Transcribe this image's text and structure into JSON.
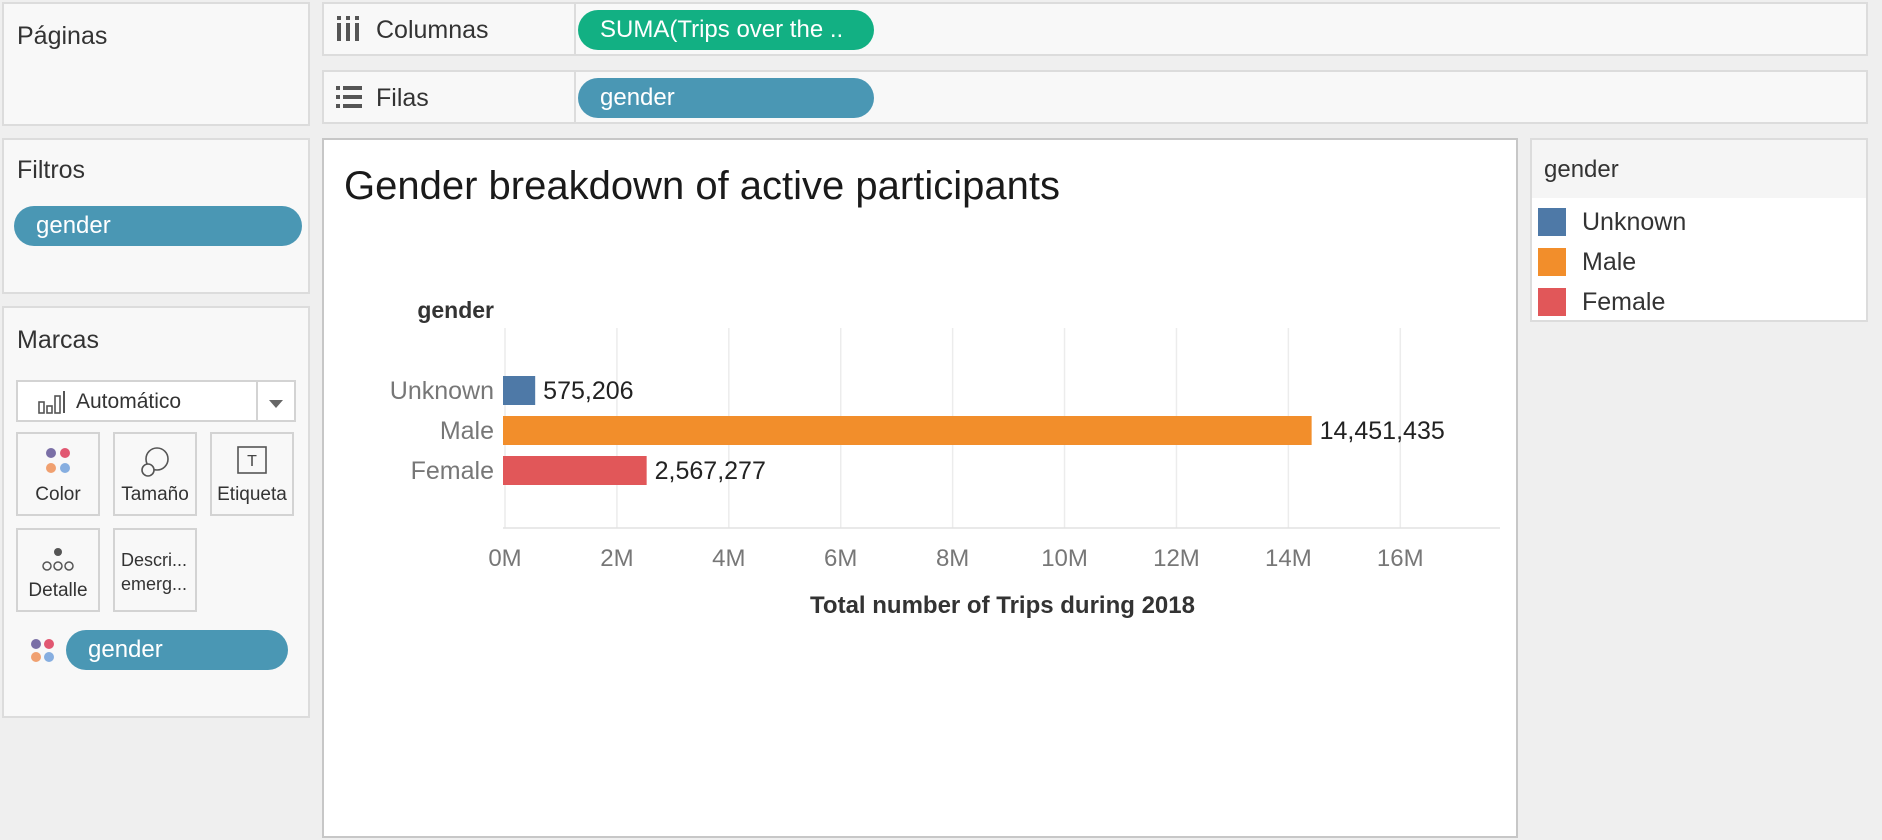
{
  "pages_panel": {
    "title": "Páginas"
  },
  "filters_panel": {
    "title": "Filtros",
    "pills": [
      "gender"
    ]
  },
  "marks_panel": {
    "title": "Marcas",
    "mark_type": "Automático",
    "cards": [
      {
        "label": "Color",
        "icon": "color-dots-icon"
      },
      {
        "label": "Tamaño",
        "icon": "size-icon"
      },
      {
        "label": "Etiqueta",
        "icon": "label-text-icon"
      },
      {
        "label": "Detalle",
        "icon": "detail-dots-icon"
      },
      {
        "label": "Descri...\nemerg...",
        "icon": "tooltip-icon"
      }
    ],
    "color_pill": "gender"
  },
  "shelves": {
    "columns": {
      "label": "Columnas",
      "pill": "SUMA(Trips over the .."
    },
    "rows": {
      "label": "Filas",
      "pill": "gender"
    }
  },
  "legend": {
    "title": "gender",
    "items": [
      {
        "label": "Unknown",
        "color": "#4e79a7"
      },
      {
        "label": "Male",
        "color": "#f28e2b"
      },
      {
        "label": "Female",
        "color": "#e15759"
      }
    ]
  },
  "chart_data": {
    "type": "bar",
    "orientation": "horizontal",
    "title": "Gender breakdown of active participants",
    "row_header": "gender",
    "categories": [
      "Unknown",
      "Male",
      "Female"
    ],
    "values": [
      575206,
      14451435,
      2567277
    ],
    "value_labels": [
      "575,206",
      "14,451,435",
      "2,567,277"
    ],
    "colors": [
      "#4e79a7",
      "#f28e2b",
      "#e15759"
    ],
    "xlabel": "Total number of Trips during 2018",
    "xlim": [
      0,
      17800000
    ],
    "xticks": [
      0,
      2000000,
      4000000,
      6000000,
      8000000,
      10000000,
      12000000,
      14000000,
      16000000
    ],
    "xtick_labels": [
      "0M",
      "2M",
      "4M",
      "6M",
      "8M",
      "10M",
      "12M",
      "14M",
      "16M"
    ],
    "grid": true
  }
}
